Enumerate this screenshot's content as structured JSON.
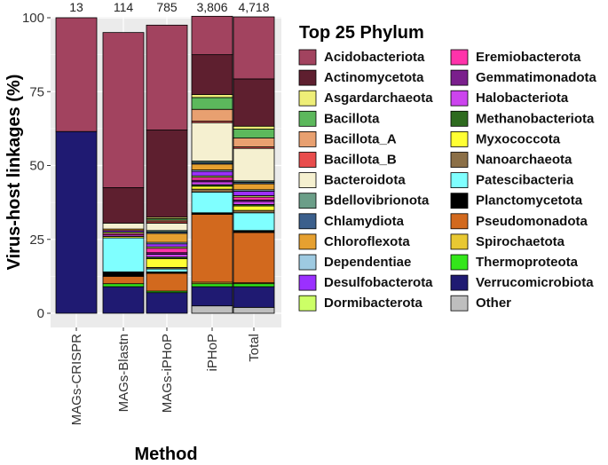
{
  "chart_data": {
    "type": "bar",
    "stacked": true,
    "xlabel": "Method",
    "ylabel": "Virus-host linkages (%)",
    "ylim": [
      0,
      100
    ],
    "yticks": [
      0,
      25,
      50,
      75,
      100
    ],
    "categories": [
      "MAGs-CRISPR",
      "MAGs-Blastn",
      "MAGs-iPHoP",
      "iPHoP",
      "Total"
    ],
    "counts": [
      "13",
      "114",
      "785",
      "3,806",
      "4,718"
    ],
    "legend_title": "Top 25 Phylum",
    "series": [
      {
        "name": "Other",
        "color": "#BEBEBE",
        "values": [
          0,
          0,
          0,
          2.5,
          2
        ]
      },
      {
        "name": "Verrucomicrobiota",
        "color": "#1F1A72",
        "values": [
          61.5,
          9,
          7,
          6.5,
          7
        ]
      },
      {
        "name": "Thermoproteota",
        "color": "#33E61A",
        "values": [
          0,
          1,
          0.5,
          1,
          1
        ]
      },
      {
        "name": "Spirochaetota",
        "color": "#E8C832",
        "values": [
          0,
          0,
          0,
          0.5,
          0.3
        ]
      },
      {
        "name": "Pseudomonadota",
        "color": "#D2691E",
        "values": [
          0,
          2.5,
          6,
          23,
          17
        ]
      },
      {
        "name": "Planctomycetota",
        "color": "#000000",
        "values": [
          0,
          1.5,
          0.5,
          0.5,
          0.7
        ]
      },
      {
        "name": "Patescibacteria",
        "color": "#7FFFFF",
        "values": [
          0,
          11.5,
          1,
          7,
          6
        ]
      },
      {
        "name": "Nanoarchaeota",
        "color": "#8B6F47",
        "values": [
          0,
          0,
          0.5,
          1,
          0.8
        ]
      },
      {
        "name": "Myxococcota",
        "color": "#FFFF33",
        "values": [
          0,
          0.5,
          3,
          1,
          1.5
        ]
      },
      {
        "name": "Methanobacteriota",
        "color": "#2E6B1F",
        "values": [
          0,
          0,
          0.5,
          0.5,
          0.5
        ]
      },
      {
        "name": "Halobacteriota",
        "color": "#CC44EE",
        "values": [
          0,
          0.5,
          1,
          1,
          1
        ]
      },
      {
        "name": "Gemmatimonadota",
        "color": "#7A1F8C",
        "values": [
          0,
          0,
          0.5,
          0.5,
          0.5
        ]
      },
      {
        "name": "Eremiobacterota",
        "color": "#FF33AA",
        "values": [
          0,
          0.5,
          1.5,
          1,
          1
        ]
      },
      {
        "name": "Dormibacterota",
        "color": "#CCFF66",
        "values": [
          0,
          0.5,
          0.5,
          0.5,
          0.5
        ]
      },
      {
        "name": "Desulfobacterota",
        "color": "#9B30FF",
        "values": [
          0,
          0.5,
          1,
          1.5,
          1.5
        ]
      },
      {
        "name": "Dependentiae",
        "color": "#9ECAE1",
        "values": [
          0,
          0,
          0.5,
          0.5,
          0.5
        ]
      },
      {
        "name": "Chloroflexota",
        "color": "#E6A030",
        "values": [
          0,
          0.5,
          3,
          2,
          2
        ]
      },
      {
        "name": "Chlamydiota",
        "color": "#3B5F8C",
        "values": [
          0,
          0,
          0.5,
          0.5,
          0.5
        ]
      },
      {
        "name": "Bdellovibrionota",
        "color": "#6B9E88",
        "values": [
          0,
          0,
          0.5,
          0.5,
          0.5
        ]
      },
      {
        "name": "Bacteroidota",
        "color": "#F5F0D0",
        "values": [
          0,
          2,
          2.5,
          13,
          11
        ]
      },
      {
        "name": "Bacillota_B",
        "color": "#E84C4C",
        "values": [
          0,
          0,
          0.5,
          0.5,
          0.5
        ]
      },
      {
        "name": "Bacillota_A",
        "color": "#E8A070",
        "values": [
          0,
          0,
          0.5,
          4,
          3
        ]
      },
      {
        "name": "Bacillota",
        "color": "#5CB85C",
        "values": [
          0,
          0,
          0.5,
          4,
          3
        ]
      },
      {
        "name": "Asgardarchaeota",
        "color": "#EEEE77",
        "values": [
          0,
          0,
          0.5,
          1,
          1
        ]
      },
      {
        "name": "Actinomycetota",
        "color": "#5E1F2F",
        "values": [
          0,
          12,
          29.5,
          13.5,
          16
        ]
      },
      {
        "name": "Acidobacteriota",
        "color": "#A2435F",
        "values": [
          38.5,
          52.5,
          35.5,
          13,
          21
        ]
      }
    ],
    "legend_order": [
      "Acidobacteriota",
      "Actinomycetota",
      "Asgardarchaeota",
      "Bacillota",
      "Bacillota_A",
      "Bacillota_B",
      "Bacteroidota",
      "Bdellovibrionota",
      "Chlamydiota",
      "Chloroflexota",
      "Dependentiae",
      "Desulfobacterota",
      "Dormibacterota",
      "Eremiobacterota",
      "Gemmatimonadota",
      "Halobacteriota",
      "Methanobacteriota",
      "Myxococcota",
      "Nanoarchaeota",
      "Patescibacteria",
      "Planctomycetota",
      "Pseudomonadota",
      "Spirochaetota",
      "Thermoproteota",
      "Verrucomicrobiota",
      "Other"
    ]
  }
}
